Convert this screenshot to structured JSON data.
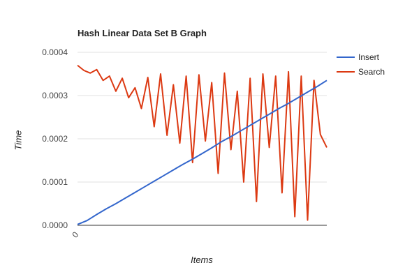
{
  "chart_data": {
    "type": "line",
    "title": "Hash Linear Data Set B Graph",
    "xlabel": "Items",
    "ylabel": "Time",
    "x_tick_labels": [
      "0"
    ],
    "y_tick_labels": [
      "0.0000",
      "0.0001",
      "0.0002",
      "0.0003",
      "0.0004"
    ],
    "ylim": [
      0,
      0.0004
    ],
    "grid": true,
    "legend": "right",
    "series": [
      {
        "name": "Insert",
        "color": "#3366cc",
        "values": [
          2e-06,
          1.1e-05,
          2.5e-05,
          3.8e-05,
          5e-05,
          6.3e-05,
          7.6e-05,
          8.9e-05,
          0.000102,
          0.000115,
          0.000128,
          0.000141,
          0.000153,
          0.000166,
          0.000179,
          0.000193,
          0.000205,
          0.000218,
          0.000231,
          0.000244,
          0.000257,
          0.00027,
          0.000282,
          0.000295,
          0.000308,
          0.000321,
          0.000335
        ]
      },
      {
        "name": "Search",
        "color": "#dc3912",
        "values": [
          0.00037,
          0.000358,
          0.000352,
          0.00036,
          0.000335,
          0.000345,
          0.00031,
          0.00034,
          0.000295,
          0.000318,
          0.00027,
          0.000342,
          0.000228,
          0.00035,
          0.000208,
          0.000325,
          0.00019,
          0.000345,
          0.000145,
          0.000348,
          0.000195,
          0.00033,
          0.00012,
          0.000352,
          0.000175,
          0.00031,
          0.0001,
          0.00034,
          5.5e-05,
          0.00035,
          0.00018,
          0.000345,
          7.5e-05,
          0.000355,
          2e-05,
          0.000345,
          1.2e-05,
          0.000335,
          0.00021,
          0.00018
        ]
      }
    ]
  }
}
